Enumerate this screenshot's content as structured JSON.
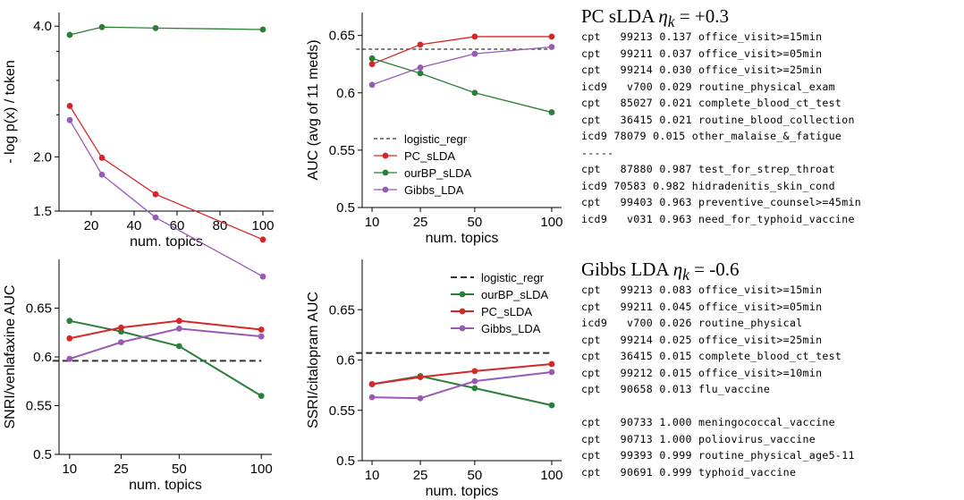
{
  "chart_data": [
    {
      "type": "line",
      "xlabel": "num. topics",
      "ylabel": "- log p(x) / token",
      "x": [
        10,
        25,
        50,
        100
      ],
      "xlim": [
        5,
        105
      ],
      "xticks": [
        20,
        40,
        60,
        80,
        100
      ],
      "ylim": [
        1.5,
        4.3
      ],
      "ytick_labels": [
        "1.5",
        "2.0",
        "4.0"
      ],
      "series": [
        {
          "color": "#2a7f37",
          "values": [
            3.82,
            3.98,
            3.96,
            3.93
          ]
        },
        {
          "color": "#d62728",
          "values": [
            2.62,
            1.99,
            1.64,
            1.29
          ]
        },
        {
          "color": "#9b59b6",
          "values": [
            2.43,
            1.82,
            1.45,
            1.06
          ]
        }
      ]
    },
    {
      "type": "line",
      "xlabel": "num. topics",
      "ylabel": "AUC (avg of 11 meds)",
      "x": [
        10,
        25,
        50,
        100
      ],
      "xticks": [
        10,
        25,
        50,
        100
      ],
      "ylim": [
        0.5,
        0.67
      ],
      "yticks": [
        0.5,
        0.55,
        0.6,
        0.65
      ],
      "ytick_labels": [
        "0.5",
        "0.55",
        "0.6",
        "0.65"
      ],
      "legend_position": "lower-left",
      "baseline": {
        "name": "logistic_regr",
        "value": 0.638
      },
      "series": [
        {
          "name": "PC_sLDA",
          "color": "#d62728",
          "values": [
            0.625,
            0.642,
            0.649,
            0.649
          ]
        },
        {
          "name": "ourBP_sLDA",
          "color": "#2a7f37",
          "values": [
            0.63,
            0.617,
            0.6,
            0.583
          ]
        },
        {
          "name": "Gibbs_LDA",
          "color": "#9b59b6",
          "values": [
            0.607,
            0.622,
            0.634,
            0.64
          ]
        }
      ]
    },
    {
      "type": "line",
      "xlabel": "num. topics",
      "ylabel": "SNRI/venlafaxine AUC",
      "x": [
        10,
        25,
        50,
        100
      ],
      "xticks": [
        10,
        25,
        50,
        100
      ],
      "ylim": [
        0.5,
        0.7
      ],
      "yticks": [
        0.5,
        0.55,
        0.6,
        0.65
      ],
      "ytick_labels": [
        "0.5",
        "0.55",
        "0.6",
        "0.65"
      ],
      "baseline": {
        "name": "logistic_regr",
        "value": 0.596
      },
      "series": [
        {
          "name": "ourBP_sLDA",
          "color": "#2a7f37",
          "values": [
            0.637,
            0.626,
            0.611,
            0.56
          ]
        },
        {
          "name": "PC_sLDA",
          "color": "#d62728",
          "values": [
            0.619,
            0.63,
            0.637,
            0.628
          ]
        },
        {
          "name": "Gibbs_LDA",
          "color": "#9b59b6",
          "values": [
            0.598,
            0.615,
            0.629,
            0.621
          ]
        }
      ]
    },
    {
      "type": "line",
      "xlabel": "num. topics",
      "ylabel": "SSRI/citalopram AUC",
      "x": [
        10,
        25,
        50,
        100
      ],
      "xticks": [
        10,
        25,
        50,
        100
      ],
      "ylim": [
        0.5,
        0.7
      ],
      "yticks": [
        0.5,
        0.55,
        0.6,
        0.65
      ],
      "ytick_labels": [
        "0.5",
        "0.55",
        "0.6",
        "0.65"
      ],
      "legend_position": "top-right",
      "baseline": {
        "name": "logistic_regr",
        "value": 0.607
      },
      "series": [
        {
          "name": "ourBP_sLDA",
          "color": "#2a7f37",
          "values": [
            0.576,
            0.584,
            0.572,
            0.555
          ]
        },
        {
          "name": "PC_sLDA",
          "color": "#d62728",
          "values": [
            0.576,
            0.583,
            0.589,
            0.596
          ]
        },
        {
          "name": "Gibbs_LDA",
          "color": "#9b59b6",
          "values": [
            0.563,
            0.562,
            0.579,
            0.588
          ]
        }
      ]
    }
  ],
  "tables": [
    {
      "title_prefix": "PC sLDA ",
      "title_eta": "η",
      "title_sub": "k",
      "title_value": " =  +0.3",
      "lines": [
        "cpt   99213 0.137 office_visit>=15min",
        "cpt   99211 0.037 office_visit>=05min",
        "cpt   99214 0.030 office_visit>=25min",
        "icd9   v700 0.029 routine_physical_exam",
        "cpt   85027 0.021 complete_blood_ct_test",
        "cpt   36415 0.021 routine_blood_collection",
        "icd9 78079 0.015 other_malaise_&_fatigue",
        "-----",
        "cpt   87880 0.987 test_for_strep_throat",
        "icd9 70583 0.982 hidradenitis_skin_cond",
        "cpt   99403 0.963 preventive_counsel>=45min",
        "icd9   v031 0.963 need_for_typhoid_vaccine"
      ]
    },
    {
      "title_prefix": "Gibbs LDA ",
      "title_eta": "η",
      "title_sub": "k",
      "title_value": " = -0.6",
      "lines": [
        "cpt   99213 0.083 office_visit>=15min",
        "cpt   99211 0.045 office_visit>=05min",
        "icd9   v700 0.026 routine_physical",
        "cpt   99214 0.025 office_visit>=25min",
        "cpt   36415 0.015 complete_blood_ct_test",
        "cpt   99212 0.015 office_visit>=10min",
        "cpt   90658 0.013 flu_vaccine",
        "",
        "cpt   90733 1.000 meningococcal_vaccine",
        "cpt   90713 1.000 poliovirus_vaccine",
        "cpt   99393 0.999 routine_physical_age5-11",
        "cpt   90691 0.999 typhoid_vaccine"
      ]
    }
  ]
}
